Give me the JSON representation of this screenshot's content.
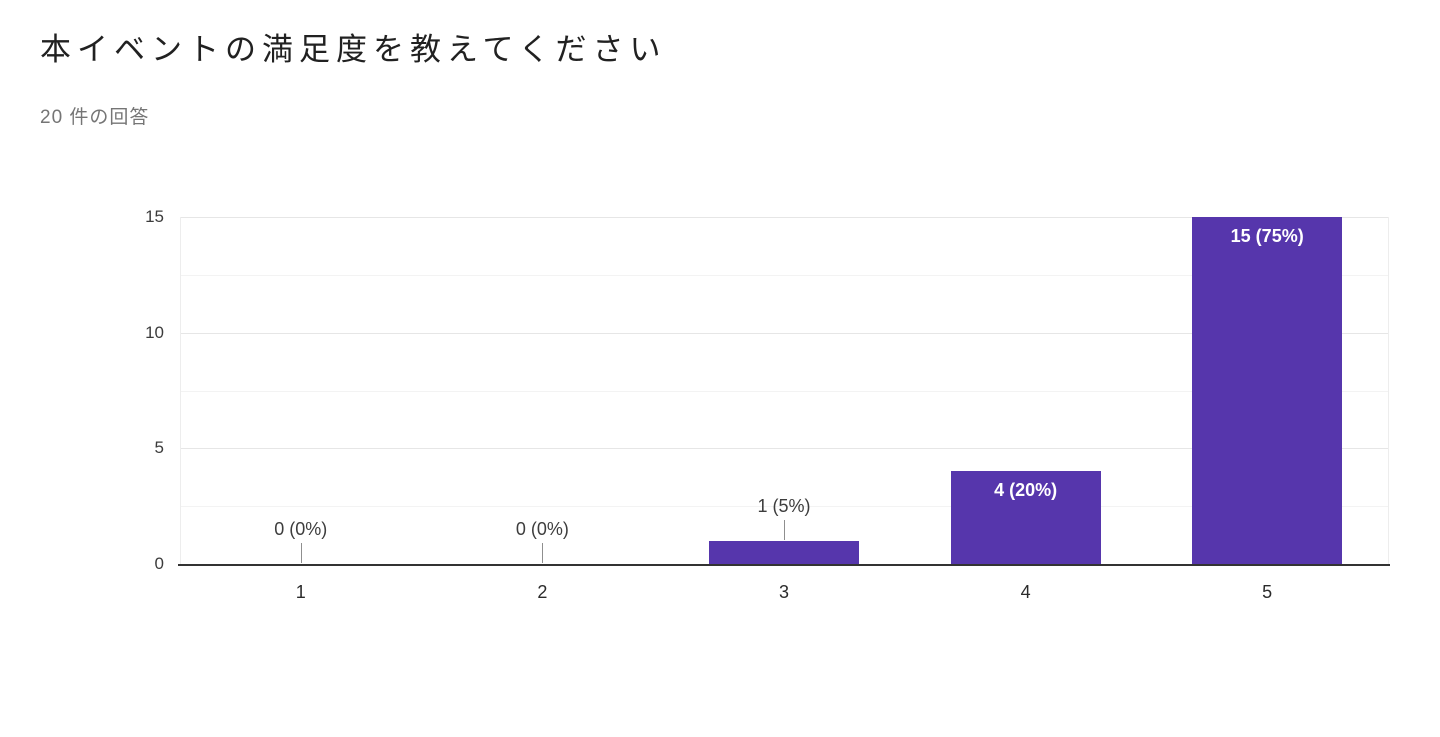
{
  "header": {
    "title": "本イベントの満足度を教えてください",
    "response_count": "20 件の回答"
  },
  "chart_data": {
    "type": "bar",
    "title": "本イベントの満足度を教えてください",
    "subtitle": "20 件の回答",
    "categories": [
      "1",
      "2",
      "3",
      "4",
      "5"
    ],
    "values": [
      0,
      0,
      1,
      4,
      15
    ],
    "value_labels": [
      "0 (0%)",
      "0 (0%)",
      "1 (5%)",
      "4 (20%)",
      "15 (75%)"
    ],
    "xlabel": "",
    "ylabel": "",
    "ylim": [
      0,
      15
    ],
    "yticks": [
      0,
      5,
      10,
      15
    ],
    "minor_gridlines": [
      2.5,
      7.5,
      12.5
    ],
    "grid": true,
    "legend": "none",
    "bar_color": "#5636ac",
    "inside_label_color": "#ffffff",
    "outside_label_color": "#3d3d3d"
  }
}
